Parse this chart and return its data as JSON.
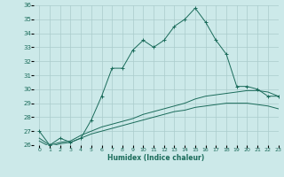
{
  "xlabel": "Humidex (Indice chaleur)",
  "ylabel": "",
  "background_color": "#cce9e9",
  "grid_color": "#aacccc",
  "line_color": "#1a6b5a",
  "x_values": [
    0,
    1,
    2,
    3,
    4,
    5,
    6,
    7,
    8,
    9,
    10,
    11,
    12,
    13,
    14,
    15,
    16,
    17,
    18,
    19,
    20,
    21,
    22,
    23
  ],
  "main_line": [
    27,
    26,
    26.5,
    26.2,
    26.5,
    27.8,
    29.5,
    31.5,
    31.5,
    32.8,
    33.5,
    33.0,
    33.5,
    34.5,
    35.0,
    35.8,
    34.8,
    33.5,
    32.5,
    30.2,
    30.2,
    30.0,
    29.5,
    29.5
  ],
  "line2": [
    26.5,
    26.0,
    26.2,
    26.3,
    26.7,
    27.0,
    27.3,
    27.5,
    27.7,
    27.9,
    28.2,
    28.4,
    28.6,
    28.8,
    29.0,
    29.3,
    29.5,
    29.6,
    29.7,
    29.8,
    29.9,
    29.9,
    29.8,
    29.5
  ],
  "line3": [
    26.3,
    25.9,
    26.1,
    26.2,
    26.5,
    26.8,
    27.0,
    27.2,
    27.4,
    27.6,
    27.8,
    28.0,
    28.2,
    28.4,
    28.5,
    28.7,
    28.8,
    28.9,
    29.0,
    29.0,
    29.0,
    28.9,
    28.8,
    28.6
  ],
  "ylim": [
    26,
    36
  ],
  "xlim": [
    -0.5,
    23
  ],
  "yticks": [
    26,
    27,
    28,
    29,
    30,
    31,
    32,
    33,
    34,
    35,
    36
  ],
  "xticks": [
    0,
    1,
    2,
    3,
    4,
    5,
    6,
    7,
    8,
    9,
    10,
    11,
    12,
    13,
    14,
    15,
    16,
    17,
    18,
    19,
    20,
    21,
    22,
    23
  ]
}
